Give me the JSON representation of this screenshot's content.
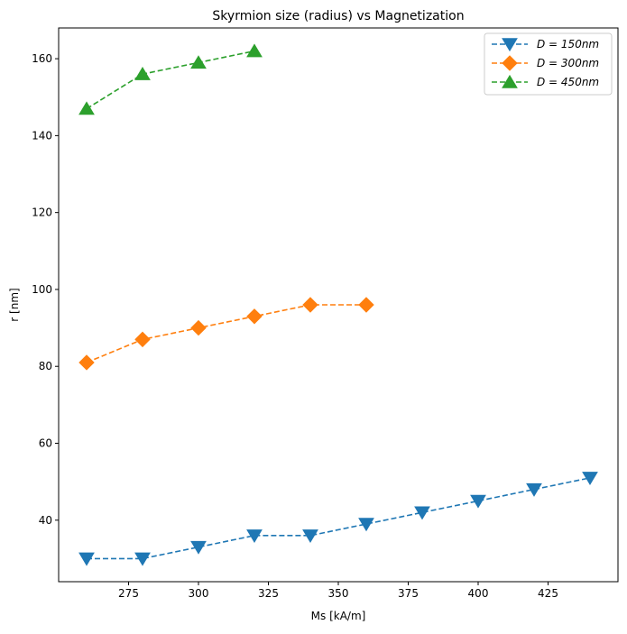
{
  "chart_data": {
    "type": "line",
    "title": "Skyrmion size (radius) vs Magnetization",
    "xlabel": "Ms [kA/m]",
    "ylabel": "r [nm]",
    "xlim": [
      250,
      450
    ],
    "ylim": [
      24,
      168
    ],
    "xticks": [
      275,
      300,
      325,
      350,
      375,
      400,
      425
    ],
    "yticks": [
      40,
      60,
      80,
      100,
      120,
      140,
      160
    ],
    "grid": false,
    "legend_position": "top-right",
    "series": [
      {
        "name": "D = 150nm",
        "color": "#1f77b4",
        "marker": "triangle-down",
        "linestyle": "dashed",
        "x": [
          260,
          280,
          300,
          320,
          340,
          360,
          380,
          400,
          420,
          440
        ],
        "y": [
          30,
          30,
          33,
          36,
          36,
          39,
          42,
          45,
          48,
          51
        ]
      },
      {
        "name": "D = 300nm",
        "color": "#ff7f0e",
        "marker": "diamond",
        "linestyle": "dashed",
        "x": [
          260,
          280,
          300,
          320,
          340,
          360
        ],
        "y": [
          81,
          87,
          90,
          93,
          96,
          96
        ]
      },
      {
        "name": "D = 450nm",
        "color": "#2ca02c",
        "marker": "triangle-up",
        "linestyle": "dashed",
        "x": [
          260,
          280,
          300,
          320
        ],
        "y": [
          147,
          156,
          159,
          162
        ]
      }
    ]
  }
}
